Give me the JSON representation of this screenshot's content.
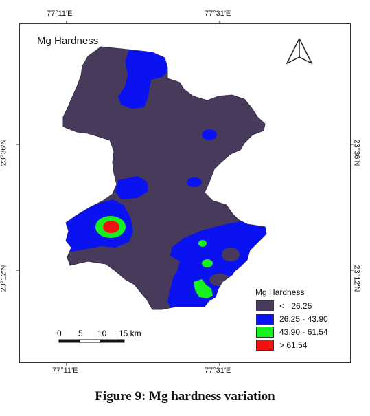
{
  "map": {
    "title": "Mg Hardness",
    "coords": {
      "top": [
        "77°11′E",
        "77°31′E"
      ],
      "bottom": [
        "77°11′E",
        "77°31′E"
      ],
      "left": [
        "23°36′N",
        "23°12′N"
      ],
      "right": [
        "23°36′N",
        "23°12′N"
      ]
    },
    "north_arrow": "north-arrow-icon",
    "scale_bar": {
      "labels": [
        "0",
        "5",
        "10",
        "15 km"
      ]
    }
  },
  "legend": {
    "title": "Mg Hardness",
    "items": [
      {
        "label": "<= 26.25",
        "color": "#473a5a"
      },
      {
        "label": "26.25 - 43.90",
        "color": "#0a12f2"
      },
      {
        "label": "43.90 - 61.54",
        "color": "#17f01f"
      },
      {
        "label": "> 61.54",
        "color": "#f2110e"
      }
    ]
  },
  "caption": "Figure 9: Mg hardness variation"
}
